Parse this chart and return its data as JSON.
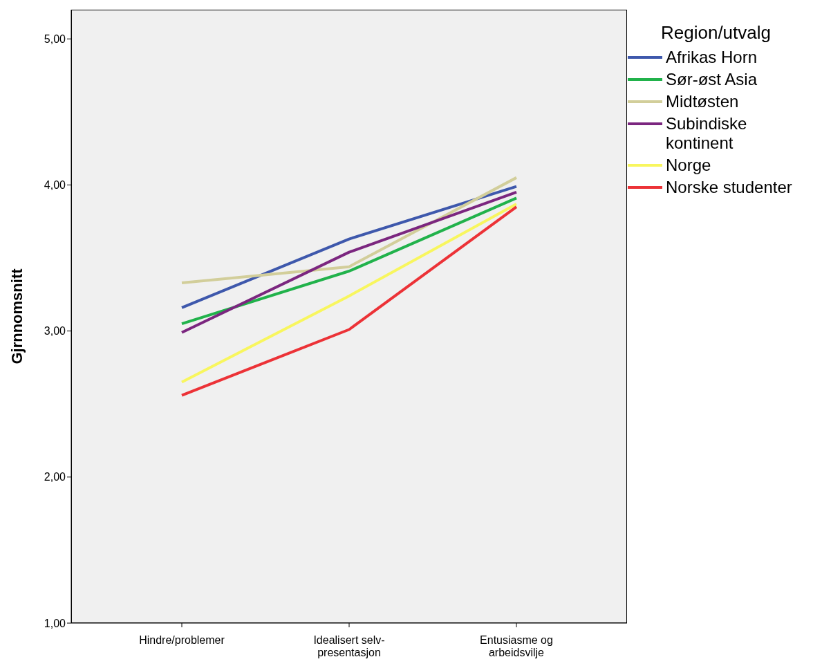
{
  "chart_data": {
    "type": "line",
    "ylabel": "Gjrnnomsnitt",
    "legend_title": "Region/utvalg",
    "legend": "right",
    "categories": [
      "Hindre/problemer",
      "Idealisert selv-presentasjon",
      "Entusiasme og arbeidsvilje"
    ],
    "ylim": [
      1,
      5.2
    ],
    "yticks": [
      {
        "value": 1,
        "label": "1,00"
      },
      {
        "value": 2,
        "label": "2,00"
      },
      {
        "value": 3,
        "label": "3,00"
      },
      {
        "value": 4,
        "label": "4,00"
      },
      {
        "value": 5,
        "label": "5,00"
      }
    ],
    "grid": false,
    "marker": "none",
    "line_style": "solid",
    "series": [
      {
        "name": "Afrikas Horn",
        "color": "#3e58ac",
        "values": [
          3.16,
          3.63,
          3.99
        ]
      },
      {
        "name": "Sør-øst Asia",
        "color": "#21b24b",
        "values": [
          3.05,
          3.41,
          3.91
        ]
      },
      {
        "name": "Midtøsten",
        "color": "#d2ce9a",
        "values": [
          3.33,
          3.44,
          4.05
        ]
      },
      {
        "name": "Subindiske kontinent",
        "color": "#7b267f",
        "values": [
          2.99,
          3.54,
          3.95
        ]
      },
      {
        "name": "Norge",
        "color": "#f8f65e",
        "values": [
          2.65,
          3.24,
          3.87
        ]
      },
      {
        "name": "Norske studenter",
        "color": "#ec3237",
        "values": [
          2.56,
          3.01,
          3.85
        ]
      }
    ]
  }
}
